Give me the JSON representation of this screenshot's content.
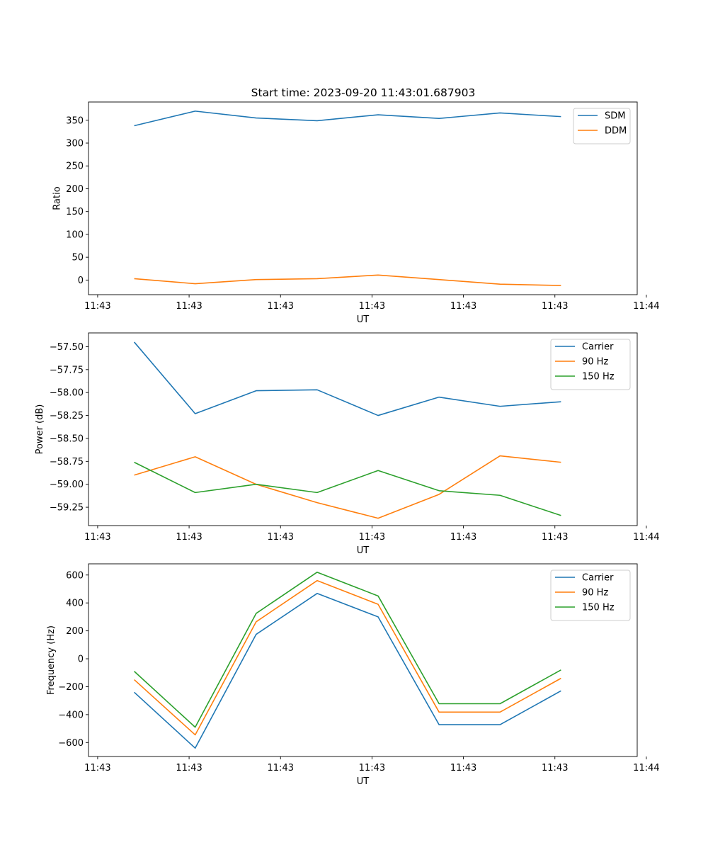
{
  "figure": {
    "title": "Start time: 2023-09-20 11:43:01.687903"
  },
  "chart_data": [
    {
      "type": "line",
      "title": "Start time: 2023-09-20 11:43:01.687903",
      "xlabel": "UT",
      "ylabel": "Ratio",
      "x": [
        0,
        1,
        2,
        3,
        4,
        5,
        6,
        7
      ],
      "xlim": [
        -0.75,
        8.25
      ],
      "x_ticks": [
        -0.6,
        0.9,
        2.4,
        3.9,
        5.4,
        6.9,
        8.4
      ],
      "x_tick_labels": [
        "11:43",
        "11:43",
        "11:43",
        "11:43",
        "11:43",
        "11:43",
        "11:44"
      ],
      "ylim": [
        -32,
        390
      ],
      "y_ticks": [
        0,
        50,
        100,
        150,
        200,
        250,
        300,
        350
      ],
      "y_tick_labels": [
        "0",
        "50",
        "100",
        "150",
        "200",
        "250",
        "300",
        "350"
      ],
      "legend_position": "top-right",
      "series": [
        {
          "name": "SDM",
          "color": "#1f77b4",
          "values": [
            338,
            370,
            355,
            349,
            362,
            354,
            366,
            358
          ]
        },
        {
          "name": "DDM",
          "color": "#ff7f0e",
          "values": [
            3,
            -8,
            1,
            3,
            11,
            1,
            -9,
            -12
          ]
        }
      ]
    },
    {
      "type": "line",
      "title": "",
      "xlabel": "UT",
      "ylabel": "Power (dB)",
      "x": [
        0,
        1,
        2,
        3,
        4,
        5,
        6,
        7
      ],
      "xlim": [
        -0.75,
        8.25
      ],
      "x_ticks": [
        -0.6,
        0.9,
        2.4,
        3.9,
        5.4,
        6.9,
        8.4
      ],
      "x_tick_labels": [
        "11:43",
        "11:43",
        "11:43",
        "11:43",
        "11:43",
        "11:43",
        "11:44"
      ],
      "ylim": [
        -59.45,
        -57.35
      ],
      "y_ticks": [
        -59.25,
        -59.0,
        -58.75,
        -58.5,
        -58.25,
        -58.0,
        -57.75,
        -57.5
      ],
      "y_tick_labels": [
        "−59.25",
        "−59.00",
        "−58.75",
        "−58.50",
        "−58.25",
        "−58.00",
        "−57.75",
        "−57.50"
      ],
      "legend_position": "top-right",
      "series": [
        {
          "name": "Carrier",
          "color": "#1f77b4",
          "values": [
            -57.45,
            -58.23,
            -57.98,
            -57.97,
            -58.25,
            -58.05,
            -58.15,
            -58.1
          ]
        },
        {
          "name": "90 Hz",
          "color": "#ff7f0e",
          "values": [
            -58.9,
            -58.7,
            -59.0,
            -59.2,
            -59.37,
            -59.11,
            -58.69,
            -58.76
          ]
        },
        {
          "name": "150 Hz",
          "color": "#2ca02c",
          "values": [
            -58.76,
            -59.09,
            -59.0,
            -59.09,
            -58.85,
            -59.07,
            -59.12,
            -59.34
          ]
        }
      ]
    },
    {
      "type": "line",
      "title": "",
      "xlabel": "UT",
      "ylabel": "Frequency (Hz)",
      "x": [
        0,
        1,
        2,
        3,
        4,
        5,
        6,
        7
      ],
      "xlim": [
        -0.75,
        8.25
      ],
      "x_ticks": [
        -0.6,
        0.9,
        2.4,
        3.9,
        5.4,
        6.9,
        8.4
      ],
      "x_tick_labels": [
        "11:43",
        "11:43",
        "11:43",
        "11:43",
        "11:43",
        "11:43",
        "11:44"
      ],
      "ylim": [
        -700,
        680
      ],
      "y_ticks": [
        -600,
        -400,
        -200,
        0,
        200,
        400,
        600
      ],
      "y_tick_labels": [
        "−600",
        "−400",
        "−200",
        "0",
        "200",
        "400",
        "600"
      ],
      "legend_position": "top-right",
      "series": [
        {
          "name": "Carrier",
          "color": "#1f77b4",
          "values": [
            -240,
            -640,
            175,
            468,
            300,
            -472,
            -472,
            -230
          ]
        },
        {
          "name": "90 Hz",
          "color": "#ff7f0e",
          "values": [
            -150,
            -545,
            265,
            560,
            390,
            -382,
            -382,
            -140
          ]
        },
        {
          "name": "150 Hz",
          "color": "#2ca02c",
          "values": [
            -90,
            -490,
            325,
            620,
            450,
            -322,
            -322,
            -80
          ]
        }
      ]
    }
  ]
}
